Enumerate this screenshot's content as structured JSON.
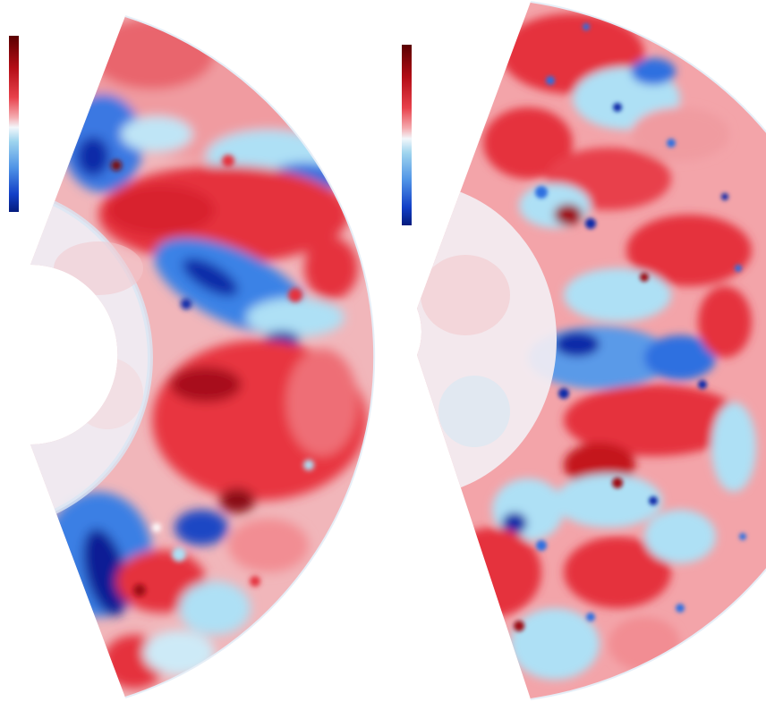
{
  "figure": {
    "panels": [
      {
        "id": "left",
        "colormap": [
          "#5a0000",
          "#b30d16",
          "#e8414b",
          "#f4a9ad",
          "#f3f7fb",
          "#9ed4ee",
          "#4f93e6",
          "#123fc7",
          "#041b7d"
        ]
      },
      {
        "id": "right",
        "colormap": [
          "#5a0000",
          "#b30d16",
          "#e8414b",
          "#f4a9ad",
          "#f3f7fb",
          "#9ed4ee",
          "#4f93e6",
          "#123fc7",
          "#041b7d"
        ]
      }
    ],
    "palette": {
      "deep_red": "#9d0a12",
      "red": "#e5323d",
      "light_red": "#f07a82",
      "white": "#eef4fa",
      "light_blue": "#aee0f5",
      "blue": "#2d6fe0",
      "deep_blue": "#0a2aa8"
    }
  }
}
